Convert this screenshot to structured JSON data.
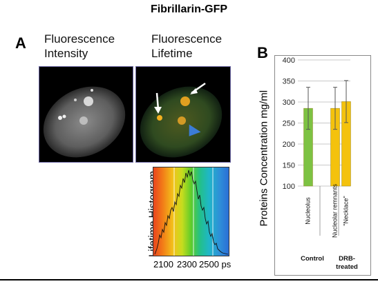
{
  "figure": {
    "title": "Fibrillarin-GFP",
    "panel_a": {
      "letter": "A",
      "label_intensity_line1": "Fluorescence",
      "label_intensity_line2": "Intensity",
      "label_lifetime_line1": "Fluorescence",
      "label_lifetime_line2": "Lifetime",
      "histogram_ylabel": "Lifetime Histogram",
      "histogram_ticks": [
        "2100",
        "2300",
        "2500 ps"
      ]
    },
    "panel_b": {
      "letter": "B"
    }
  },
  "chart_data": {
    "type": "bar",
    "ylabel": "Proteins Concentration mg/ml",
    "ylim": [
      100,
      400
    ],
    "yticks": [
      "100",
      "150",
      "200",
      "250",
      "300",
      "350",
      "400"
    ],
    "grid": true,
    "categories": [
      "Nucleolus",
      "Nucleolar remnants",
      "\"Necklace\""
    ],
    "groups": [
      "Control",
      "DRB-treated"
    ],
    "values": [
      285,
      285,
      301
    ],
    "errors": [
      50,
      50,
      50
    ],
    "colors": [
      "#7dc242",
      "#f4c20d",
      "#f4c20d"
    ]
  }
}
